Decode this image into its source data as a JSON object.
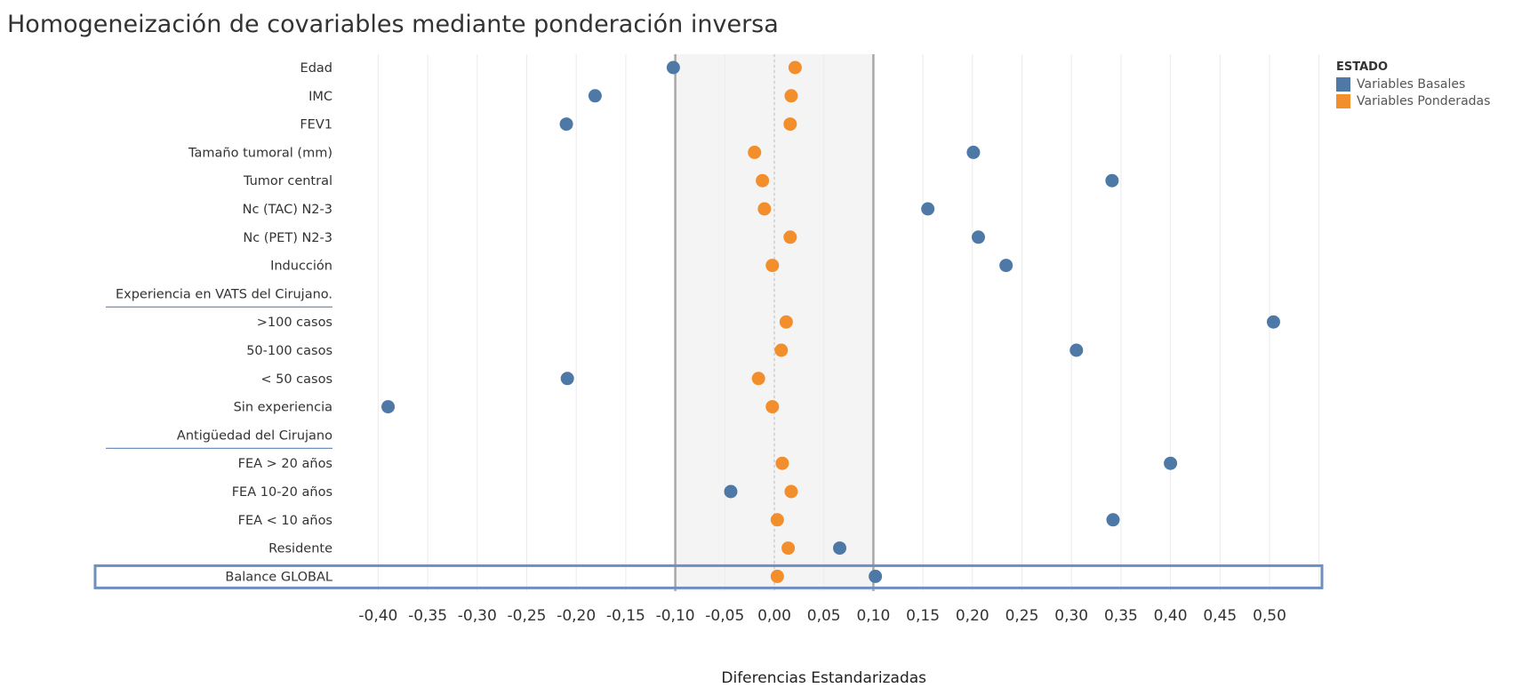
{
  "title": "Homogeneización de covariables mediante ponderación inversa",
  "legend": {
    "title": "ESTADO",
    "items": [
      {
        "label": "Variables Basales",
        "color": "#4e79a7"
      },
      {
        "label": "Variables Ponderadas",
        "color": "#f28e2b"
      }
    ]
  },
  "chart_data": {
    "type": "scatter",
    "title": "Homogeneización de covariables mediante ponderación inversa",
    "xlabel": "Diferencias Estandarizadas",
    "xlim": [
      -0.43,
      0.55
    ],
    "xticks": [
      -0.4,
      -0.35,
      -0.3,
      -0.25,
      -0.2,
      -0.15,
      -0.1,
      -0.05,
      0.0,
      0.05,
      0.1,
      0.15,
      0.2,
      0.25,
      0.3,
      0.35,
      0.4,
      0.45,
      0.5
    ],
    "xtick_labels": [
      "-0,40",
      "-0,35",
      "-0,30",
      "-0,25",
      "-0,20",
      "-0,15",
      "-0,10",
      "-0,05",
      "0,00",
      "0,05",
      "0,10",
      "0,15",
      "0,20",
      "0,25",
      "0,30",
      "0,35",
      "0,40",
      "0,45",
      "0,50"
    ],
    "reference_band": [
      -0.1,
      0.1
    ],
    "reference_line": 0.0,
    "grid": true,
    "legend_position": "top-right",
    "highlighted_row": "Balance GLOBAL",
    "rows": [
      {
        "label": "Edad",
        "basales": -0.102,
        "ponderadas": 0.021
      },
      {
        "label": "IMC",
        "basales": -0.181,
        "ponderadas": 0.017
      },
      {
        "label": "FEV1",
        "basales": -0.21,
        "ponderadas": 0.016
      },
      {
        "label": "Tamaño tumoral (mm)",
        "basales": 0.201,
        "ponderadas": -0.02
      },
      {
        "label": "Tumor central",
        "basales": 0.341,
        "ponderadas": -0.012
      },
      {
        "label": "Nc (TAC) N2-3",
        "basales": 0.155,
        "ponderadas": -0.01
      },
      {
        "label": "Nc (PET) N2-3",
        "basales": 0.206,
        "ponderadas": 0.016
      },
      {
        "label": "Inducción",
        "basales": 0.234,
        "ponderadas": -0.002
      },
      {
        "label": "Experiencia en VATS del Cirujano.",
        "header": true
      },
      {
        "label": ">100 casos",
        "basales": 0.504,
        "ponderadas": 0.012
      },
      {
        "label": "50-100 casos",
        "basales": 0.305,
        "ponderadas": 0.007
      },
      {
        "label": "< 50 casos",
        "basales": -0.209,
        "ponderadas": -0.016
      },
      {
        "label": "Sin experiencia",
        "basales": -0.39,
        "ponderadas": -0.002
      },
      {
        "label": "Antigüedad del Cirujano",
        "header": true
      },
      {
        "label": "FEA > 20 años",
        "basales": 0.4,
        "ponderadas": 0.008
      },
      {
        "label": "FEA 10-20 años",
        "basales": -0.044,
        "ponderadas": 0.017
      },
      {
        "label": "FEA < 10 años",
        "basales": 0.342,
        "ponderadas": 0.003
      },
      {
        "label": "Residente",
        "basales": 0.066,
        "ponderadas": 0.014
      },
      {
        "label": "Balance GLOBAL",
        "basales": 0.102,
        "ponderadas": 0.003
      }
    ]
  }
}
